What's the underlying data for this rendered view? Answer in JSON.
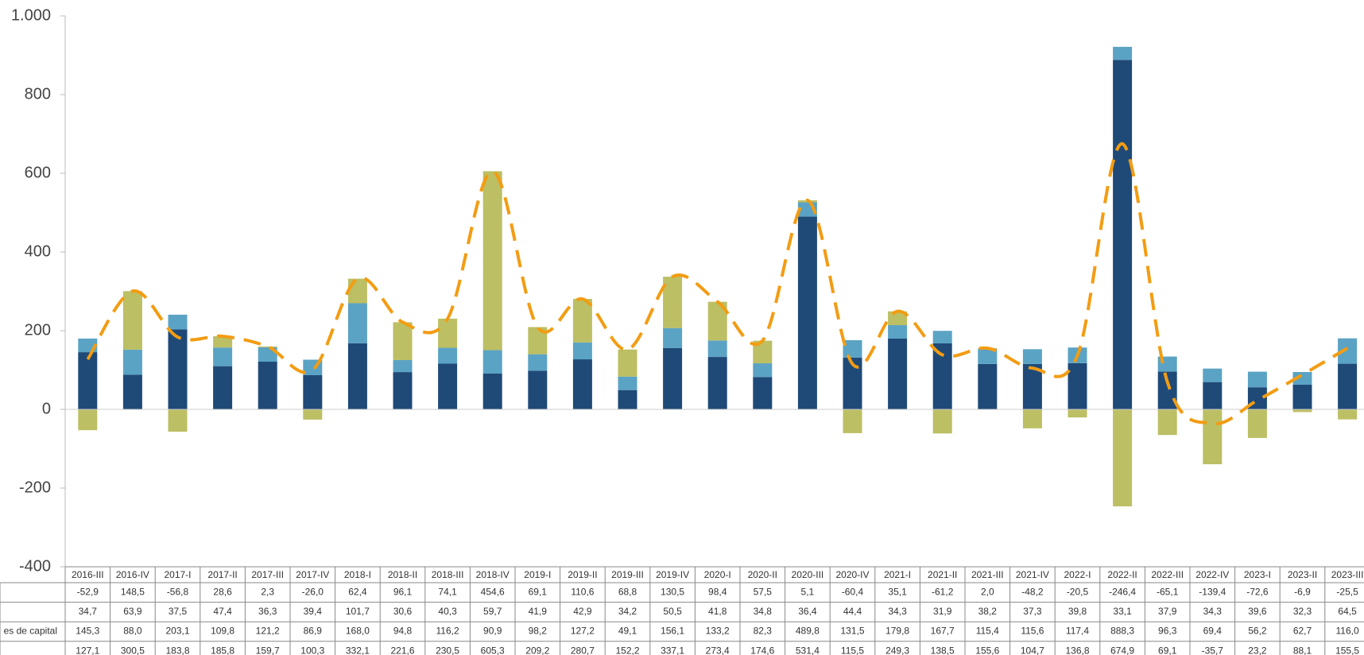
{
  "chart_data": {
    "type": "bar",
    "categories": [
      "2016-III",
      "2016-IV",
      "2017-I",
      "2017-II",
      "2017-III",
      "2017-IV",
      "2018-I",
      "2018-II",
      "2018-III",
      "2018-IV",
      "2019-I",
      "2019-II",
      "2019-III",
      "2019-IV",
      "2020-I",
      "2020-II",
      "2020-III",
      "2020-IV",
      "2021-I",
      "2021-II",
      "2021-III",
      "2021-IV",
      "2022-I",
      "2022-II",
      "2022-III",
      "2022-IV",
      "2023-I",
      "2023-II",
      "2023-III"
    ],
    "ylim": [
      -400,
      1000
    ],
    "yticks": [
      -400,
      -200,
      0,
      200,
      400,
      600,
      800,
      {
        "value": 1000,
        "label": "1.000"
      }
    ],
    "series": [
      {
        "color": "#bcbf63",
        "values": [
          -52.9,
          148.5,
          -56.8,
          28.6,
          2.3,
          -26.0,
          62.4,
          96.1,
          74.1,
          454.6,
          69.1,
          110.6,
          68.8,
          130.5,
          98.4,
          57.5,
          5.1,
          -60.4,
          35.1,
          -61.2,
          2.0,
          -48.2,
          -20.5,
          -246.4,
          -65.1,
          -139.4,
          -72.6,
          -6.9,
          -25.5
        ],
        "value_labels": [
          "-52,9",
          "148,5",
          "-56,8",
          "28,6",
          "2,3",
          "-26,0",
          "62,4",
          "96,1",
          "74,1",
          "454,6",
          "69,1",
          "110,6",
          "68,8",
          "130,5",
          "98,4",
          "57,5",
          "5,1",
          "-60,4",
          "35,1",
          "-61,2",
          "2,0",
          "-48,2",
          "-20,5",
          "-246,4",
          "-65,1",
          "-139,4",
          "-72,6",
          "-6,9",
          "-25,5"
        ]
      },
      {
        "color": "#5ba3c4",
        "values": [
          34.7,
          63.9,
          37.5,
          47.4,
          36.3,
          39.4,
          101.7,
          30.6,
          40.3,
          59.7,
          41.9,
          42.9,
          34.2,
          50.5,
          41.8,
          34.8,
          36.4,
          44.4,
          34.3,
          31.9,
          38.2,
          37.3,
          39.8,
          33.1,
          37.9,
          34.3,
          39.6,
          32.3,
          64.5
        ],
        "value_labels": [
          "34,7",
          "63,9",
          "37,5",
          "47,4",
          "36,3",
          "39,4",
          "101,7",
          "30,6",
          "40,3",
          "59,7",
          "41,9",
          "42,9",
          "34,2",
          "50,5",
          "41,8",
          "34,8",
          "36,4",
          "44,4",
          "34,3",
          "31,9",
          "38,2",
          "37,3",
          "39,8",
          "33,1",
          "37,9",
          "34,3",
          "39,6",
          "32,3",
          "64,5"
        ]
      },
      {
        "name": "es de capital",
        "color": "#1f4a78",
        "values": [
          145.3,
          88.0,
          203.1,
          109.8,
          121.2,
          86.9,
          168.0,
          94.8,
          116.2,
          90.9,
          98.2,
          127.2,
          49.1,
          156.1,
          133.2,
          82.3,
          489.8,
          131.5,
          179.8,
          167.7,
          115.4,
          115.6,
          117.4,
          888.3,
          96.3,
          69.4,
          56.2,
          62.7,
          116.0
        ],
        "value_labels": [
          "145,3",
          "88,0",
          "203,1",
          "109,8",
          "121,2",
          "86,9",
          "168,0",
          "94,8",
          "116,2",
          "90,9",
          "98,2",
          "127,2",
          "49,1",
          "156,1",
          "133,2",
          "82,3",
          "489,8",
          "131,5",
          "179,8",
          "167,7",
          "115,4",
          "115,6",
          "117,4",
          "888,3",
          "96,3",
          "69,4",
          "56,2",
          "62,7",
          "116,0"
        ]
      },
      {
        "type": "line",
        "color": "#f39c12",
        "values": [
          127.1,
          300.5,
          183.8,
          185.8,
          159.7,
          100.3,
          332.1,
          221.6,
          230.5,
          605.3,
          209.2,
          280.7,
          152.2,
          337.1,
          273.4,
          174.6,
          531.4,
          115.5,
          249.3,
          138.5,
          155.6,
          104.7,
          136.8,
          674.9,
          69.1,
          -35.7,
          23.2,
          88.1,
          155.5
        ],
        "value_labels": [
          "127,1",
          "300,5",
          "183,8",
          "185,8",
          "159,7",
          "100,3",
          "332,1",
          "221,6",
          "230,5",
          "605,3",
          "209,2",
          "280,7",
          "152,2",
          "337,1",
          "273,4",
          "174,6",
          "531,4",
          "115,5",
          "249,3",
          "138,5",
          "155,6",
          "104,7",
          "136,8",
          "674,9",
          "69,1",
          "-35,7",
          "23,2",
          "88,1",
          "155,5"
        ]
      }
    ]
  }
}
